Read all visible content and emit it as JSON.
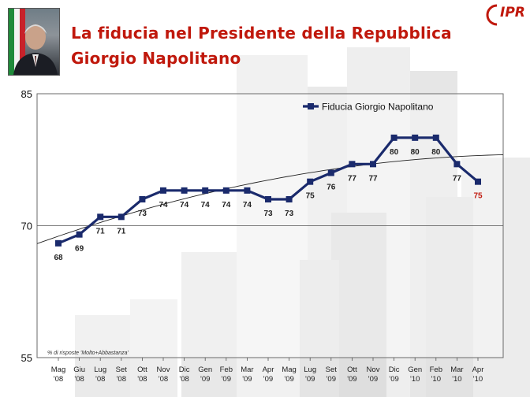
{
  "header": {
    "title_line1": "La fiducia nel Presidente della Repubblica",
    "title_line2": "Giorgio Napolitano"
  },
  "logo": {
    "text": "IPR"
  },
  "colors": {
    "title": "#c0180c",
    "series": "#1a2a6c",
    "last_label": "#c0180c"
  },
  "chart_data": {
    "type": "line",
    "title": "",
    "xlabel": "",
    "ylabel": "",
    "ylim": [
      55,
      85
    ],
    "yticks": [
      85,
      70,
      55
    ],
    "grid": true,
    "legend": "top-right",
    "note": "% di risposte 'Molto+Abbastanza'",
    "categories": [
      [
        "Mag",
        "'08"
      ],
      [
        "Giu",
        "'08"
      ],
      [
        "Lug",
        "'08"
      ],
      [
        "Set",
        "'08"
      ],
      [
        "Ott",
        "'08"
      ],
      [
        "Nov",
        "'08"
      ],
      [
        "Dic",
        "'08"
      ],
      [
        "Gen",
        "'09"
      ],
      [
        "Feb",
        "'09"
      ],
      [
        "Mar",
        "'09"
      ],
      [
        "Apr",
        "'09"
      ],
      [
        "Mag",
        "'09"
      ],
      [
        "Lug",
        "'09"
      ],
      [
        "Set",
        "'09"
      ],
      [
        "Ott",
        "'09"
      ],
      [
        "Nov",
        "'09"
      ],
      [
        "Dic",
        "'09"
      ],
      [
        "Gen",
        "'10"
      ],
      [
        "Feb",
        "'10"
      ],
      [
        "Mar",
        "'10"
      ],
      [
        "Apr",
        "'10"
      ]
    ],
    "series": [
      {
        "name": "Fiducia Giorgio Napolitano",
        "values": [
          68,
          69,
          71,
          71,
          73,
          74,
          74,
          74,
          74,
          74,
          73,
          73,
          75,
          76,
          77,
          77,
          80,
          80,
          80,
          77,
          75
        ]
      }
    ],
    "trendline": true
  }
}
